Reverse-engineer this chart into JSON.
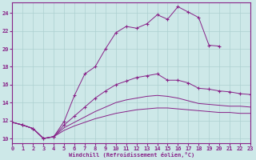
{
  "xlabel": "Windchill (Refroidissement éolien,°C)",
  "background_color": "#cde8e8",
  "grid_color": "#acd0d0",
  "line_color": "#882288",
  "xlim": [
    0,
    23
  ],
  "ylim": [
    9.5,
    25.2
  ],
  "yticks": [
    10,
    12,
    14,
    16,
    18,
    20,
    22,
    24
  ],
  "xticks": [
    0,
    1,
    2,
    3,
    4,
    5,
    6,
    7,
    8,
    9,
    10,
    11,
    12,
    13,
    14,
    15,
    16,
    17,
    18,
    19,
    20,
    21,
    22,
    23
  ],
  "line1_x": [
    0,
    1,
    2,
    3,
    4,
    5,
    6,
    7,
    8,
    9,
    10,
    11,
    12,
    13,
    14,
    15,
    16,
    17,
    18,
    19,
    20
  ],
  "line1_y": [
    11.8,
    11.5,
    11.1,
    10.0,
    10.2,
    11.9,
    14.8,
    17.2,
    18.0,
    20.0,
    21.8,
    22.5,
    22.3,
    22.8,
    23.8,
    23.3,
    24.7,
    24.1,
    23.5,
    20.4,
    20.3
  ],
  "line2_x": [
    0,
    1,
    2,
    3,
    4,
    5,
    6,
    7,
    8,
    9,
    10,
    11,
    12,
    13,
    14,
    15,
    16,
    17,
    18,
    19,
    20,
    21,
    22,
    23
  ],
  "line2_y": [
    11.8,
    11.5,
    11.1,
    10.0,
    10.2,
    11.5,
    12.5,
    13.5,
    14.5,
    15.3,
    16.0,
    16.4,
    16.8,
    17.0,
    17.2,
    16.5,
    16.5,
    16.2,
    15.6,
    15.5,
    15.3,
    15.2,
    15.0,
    14.9
  ],
  "line3_x": [
    0,
    1,
    2,
    3,
    4,
    5,
    6,
    7,
    8,
    9,
    10,
    11,
    12,
    13,
    14,
    15,
    16,
    17,
    18,
    19,
    20,
    21,
    22,
    23
  ],
  "line3_y": [
    11.8,
    11.5,
    11.1,
    10.0,
    10.2,
    11.2,
    11.8,
    12.4,
    13.0,
    13.5,
    14.0,
    14.3,
    14.5,
    14.7,
    14.8,
    14.7,
    14.5,
    14.2,
    13.9,
    13.8,
    13.7,
    13.6,
    13.6,
    13.5
  ],
  "line4_x": [
    0,
    1,
    2,
    3,
    4,
    5,
    6,
    7,
    8,
    9,
    10,
    11,
    12,
    13,
    14,
    15,
    16,
    17,
    18,
    19,
    20,
    21,
    22,
    23
  ],
  "line4_y": [
    11.8,
    11.5,
    11.1,
    10.0,
    10.2,
    10.9,
    11.4,
    11.8,
    12.2,
    12.5,
    12.8,
    13.0,
    13.2,
    13.3,
    13.4,
    13.4,
    13.3,
    13.2,
    13.1,
    13.0,
    12.9,
    12.9,
    12.8,
    12.8
  ]
}
